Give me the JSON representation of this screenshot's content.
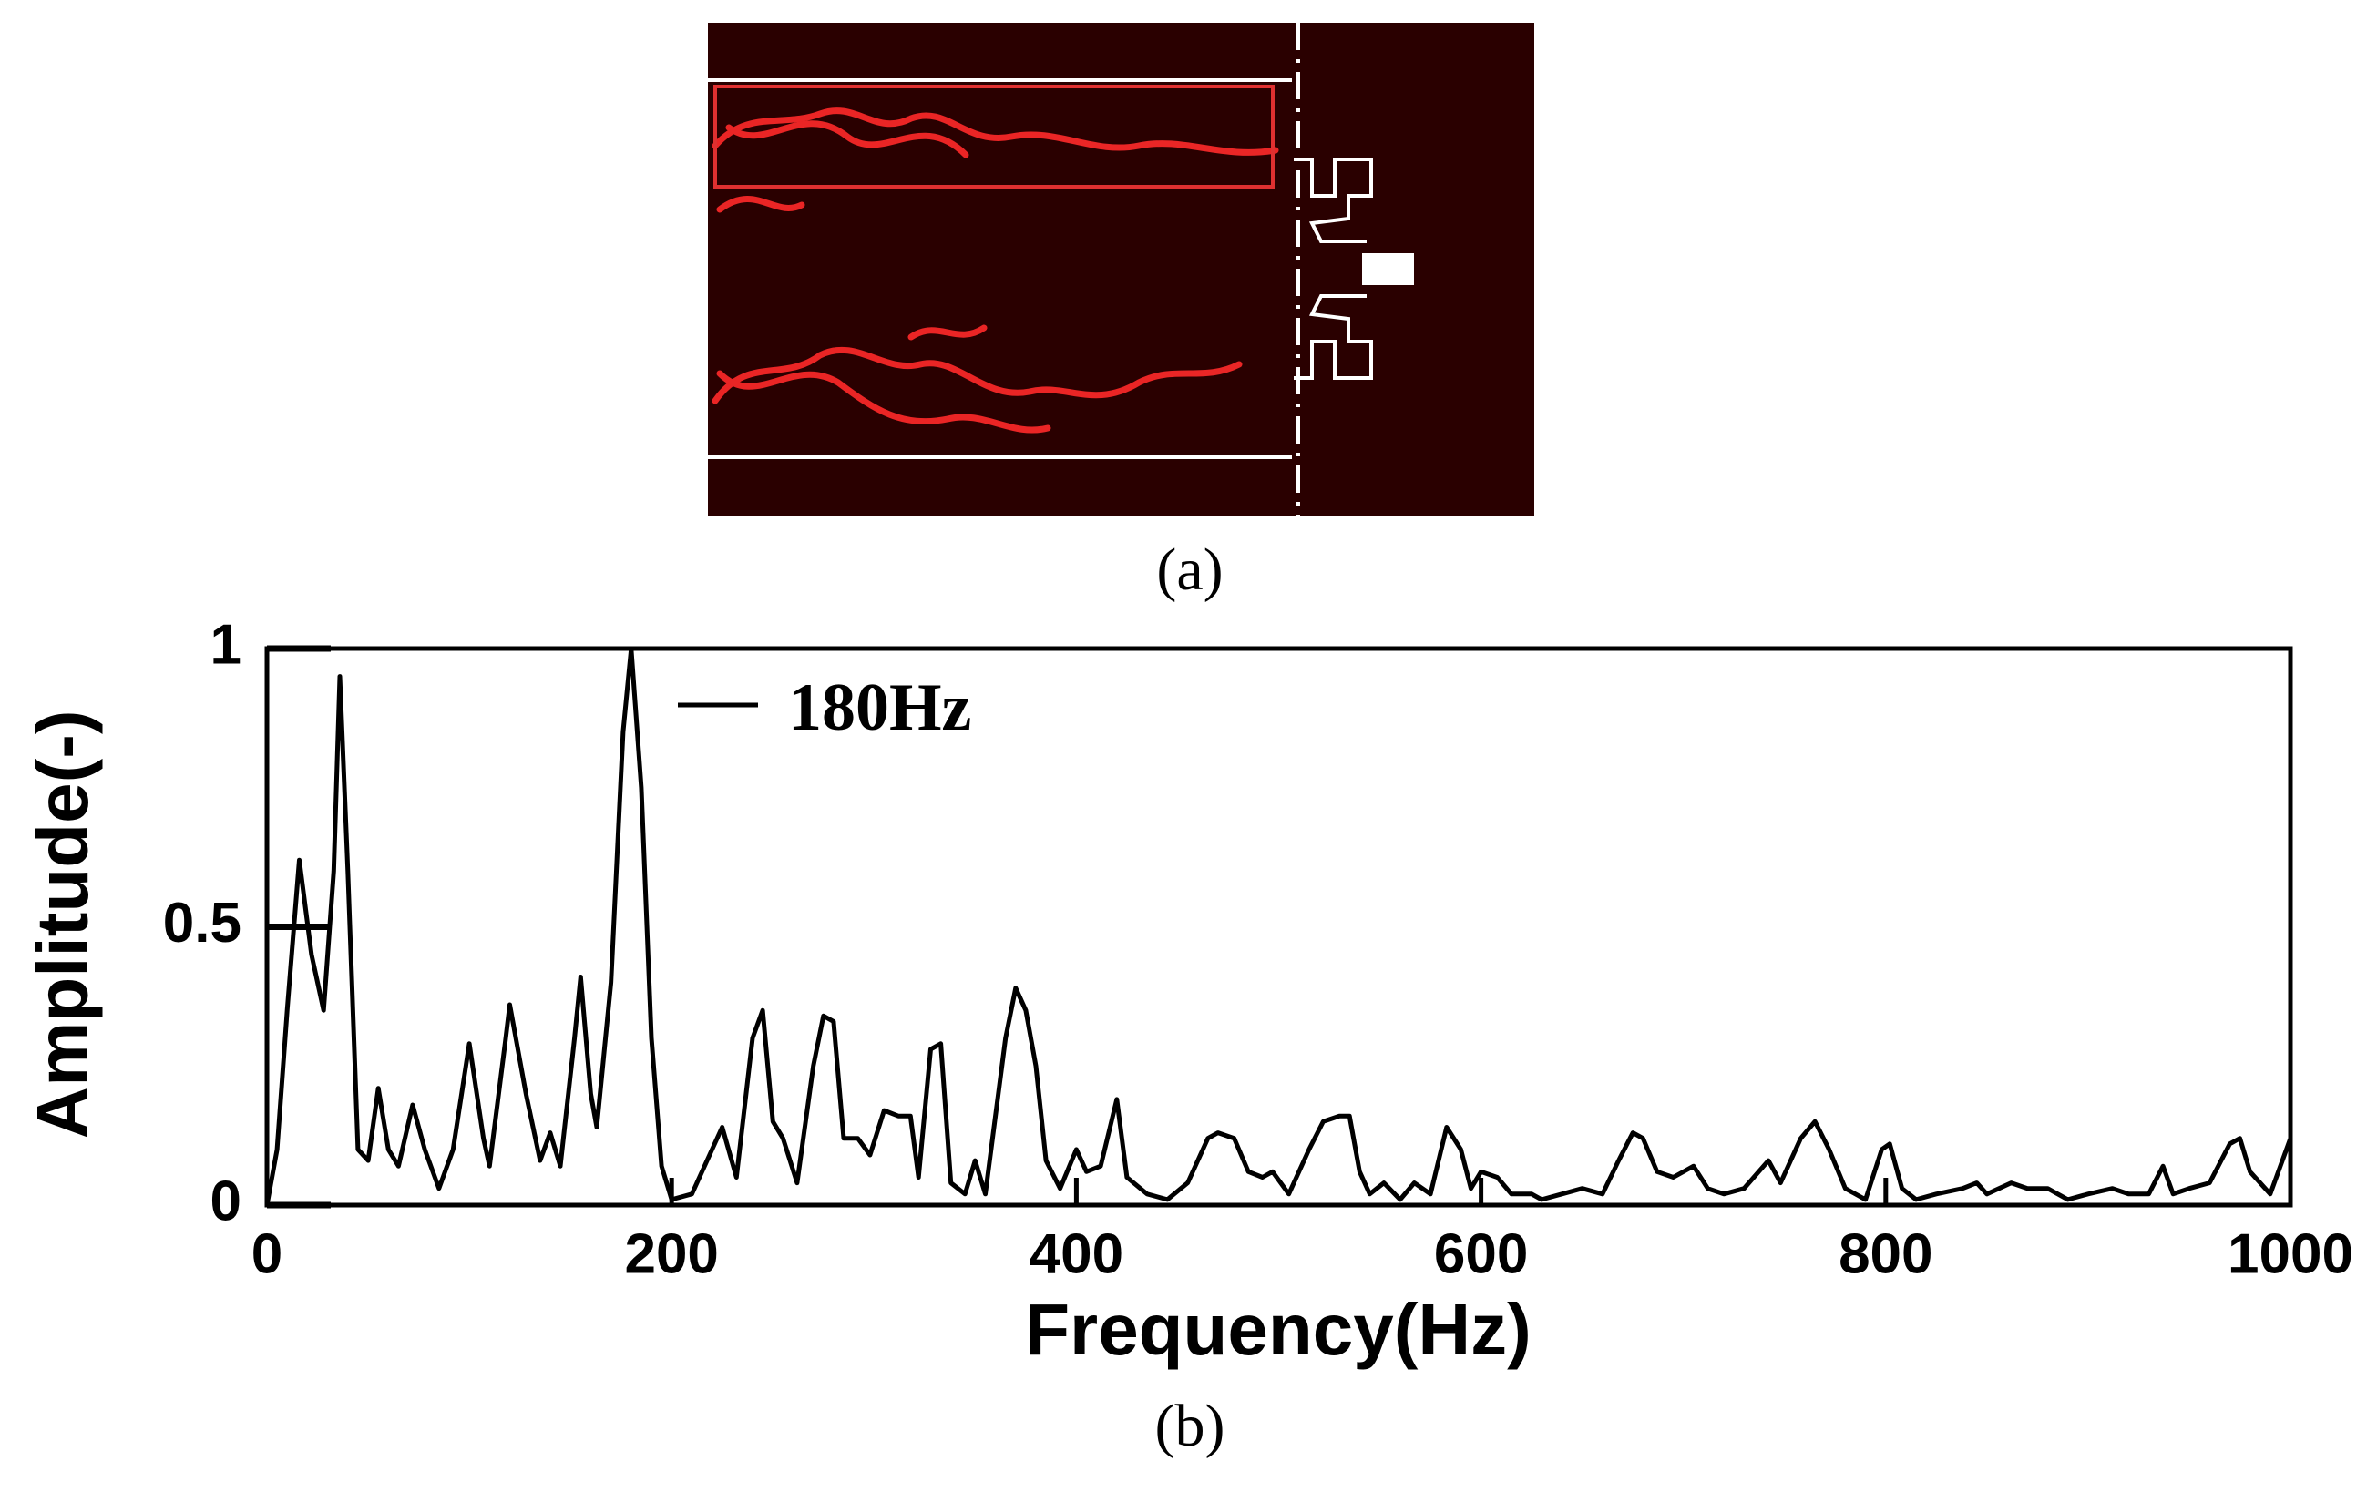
{
  "captions": [
    "(a)",
    "(b)"
  ],
  "chart_data": {
    "type": "line",
    "xlabel": "Frequency(Hz)",
    "ylabel": "Amplitude(-)",
    "annotation": "180Hz",
    "color": "#000000",
    "x": [
      0,
      5,
      10,
      16,
      22,
      28,
      33,
      36,
      40,
      45,
      50,
      55,
      60,
      65,
      72,
      78,
      85,
      92,
      100,
      107,
      110,
      118,
      120,
      128,
      135,
      140,
      145,
      152,
      155,
      160,
      163,
      170,
      176,
      180,
      185,
      190,
      195,
      200,
      210,
      220,
      225,
      232,
      240,
      245,
      250,
      255,
      262,
      270,
      275,
      280,
      285,
      292,
      298,
      305,
      312,
      318,
      322,
      328,
      333,
      338,
      345,
      350,
      355,
      365,
      370,
      375,
      380,
      385,
      392,
      400,
      405,
      412,
      420,
      425,
      435,
      445,
      455,
      465,
      470,
      478,
      485,
      492,
      497,
      505,
      515,
      522,
      530,
      535,
      540,
      545,
      552,
      560,
      567,
      575,
      583,
      590,
      595,
      600,
      608,
      615,
      625,
      630,
      640,
      650,
      660,
      668,
      675,
      680,
      687,
      695,
      705,
      712,
      720,
      730,
      742,
      748,
      758,
      765,
      772,
      780,
      790,
      798,
      802,
      808,
      815,
      825,
      838,
      845,
      850,
      862,
      870,
      880,
      890,
      900,
      912,
      920,
      930,
      937,
      942,
      950,
      960,
      970,
      975,
      980,
      990,
      1000
    ],
    "values": [
      0,
      0.1,
      0.35,
      0.62,
      0.45,
      0.35,
      0.6,
      0.95,
      0.6,
      0.1,
      0.08,
      0.21,
      0.1,
      0.07,
      0.18,
      0.1,
      0.03,
      0.1,
      0.29,
      0.12,
      0.07,
      0.3,
      0.36,
      0.2,
      0.08,
      0.13,
      0.07,
      0.3,
      0.41,
      0.2,
      0.14,
      0.4,
      0.85,
      1,
      0.75,
      0.3,
      0.07,
      0.01,
      0.02,
      0.1,
      0.14,
      0.05,
      0.3,
      0.35,
      0.15,
      0.12,
      0.04,
      0.25,
      0.34,
      0.33,
      0.12,
      0.12,
      0.09,
      0.17,
      0.16,
      0.16,
      0.05,
      0.28,
      0.29,
      0.04,
      0.02,
      0.08,
      0.02,
      0.3,
      0.39,
      0.35,
      0.25,
      0.08,
      0.03,
      0.1,
      0.06,
      0.07,
      0.19,
      0.05,
      0.02,
      0.01,
      0.04,
      0.12,
      0.13,
      0.12,
      0.06,
      0.05,
      0.06,
      0.02,
      0.1,
      0.15,
      0.16,
      0.16,
      0.06,
      0.02,
      0.04,
      0.01,
      0.04,
      0.02,
      0.14,
      0.1,
      0.03,
      0.06,
      0.05,
      0.02,
      0.02,
      0.01,
      0.02,
      0.03,
      0.02,
      0.08,
      0.13,
      0.12,
      0.06,
      0.05,
      0.07,
      0.03,
      0.02,
      0.03,
      0.08,
      0.04,
      0.12,
      0.15,
      0.1,
      0.03,
      0.01,
      0.1,
      0.11,
      0.03,
      0.01,
      0.02,
      0.03,
      0.04,
      0.02,
      0.04,
      0.03,
      0.03,
      0.01,
      0.02,
      0.03,
      0.02,
      0.02,
      0.07,
      0.02,
      0.03,
      0.04,
      0.11,
      0.12,
      0.06,
      0.02,
      0.12
    ],
    "xlim": [
      0,
      1000
    ],
    "xticks": [
      0,
      200,
      400,
      600,
      800,
      1000
    ],
    "ylim": [
      0,
      1
    ],
    "yticks": [
      0,
      0.5,
      1
    ]
  }
}
